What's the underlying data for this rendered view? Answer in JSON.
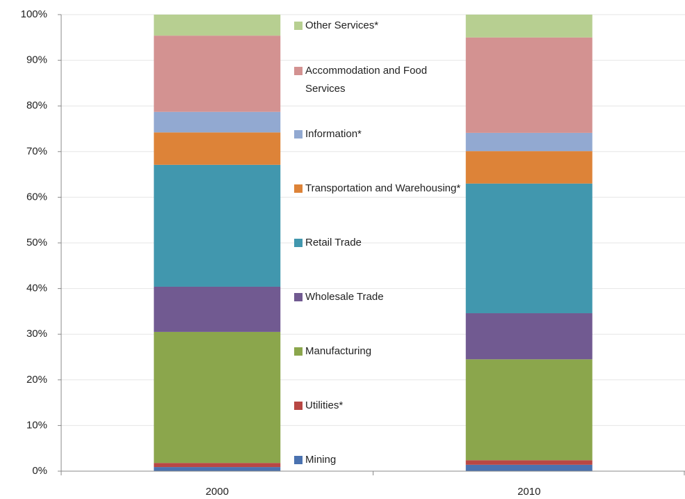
{
  "chart_data": {
    "type": "stacked-bar",
    "categories": [
      "2000",
      "2010"
    ],
    "series": [
      {
        "name": "Mining",
        "color": "#4a72b0",
        "values": [
          0.9,
          1.4
        ]
      },
      {
        "name": "Utilities*",
        "color": "#b84744",
        "values": [
          0.9,
          1.0
        ]
      },
      {
        "name": "Manufacturing",
        "color": "#8ba64c",
        "values": [
          28.7,
          22.1
        ]
      },
      {
        "name": "Wholesale Trade",
        "color": "#715a91",
        "values": [
          9.9,
          10.1
        ]
      },
      {
        "name": "Retail Trade",
        "color": "#4197ae",
        "values": [
          26.7,
          28.4
        ]
      },
      {
        "name": "Transportation and Warehousing*",
        "color": "#dd8338",
        "values": [
          7.1,
          7.1
        ]
      },
      {
        "name": "Information*",
        "color": "#92a9d1",
        "values": [
          4.5,
          4.0
        ]
      },
      {
        "name": "Accommodation and Food Services",
        "color": "#d39291",
        "values": [
          16.7,
          20.9
        ]
      },
      {
        "name": "Other Services*",
        "color": "#b7cf91",
        "values": [
          4.6,
          5.0
        ]
      }
    ],
    "ylim": [
      0,
      100
    ],
    "yticks": [
      {
        "value": 0,
        "label": "0%"
      },
      {
        "value": 10,
        "label": "10%"
      },
      {
        "value": 20,
        "label": "20%"
      },
      {
        "value": 30,
        "label": "30%"
      },
      {
        "value": 40,
        "label": "40%"
      },
      {
        "value": 50,
        "label": "50%"
      },
      {
        "value": 60,
        "label": "60%"
      },
      {
        "value": 70,
        "label": "70%"
      },
      {
        "value": 80,
        "label": "80%"
      },
      {
        "value": 90,
        "label": "90%"
      },
      {
        "value": 100,
        "label": "100%"
      }
    ],
    "grid": true
  }
}
